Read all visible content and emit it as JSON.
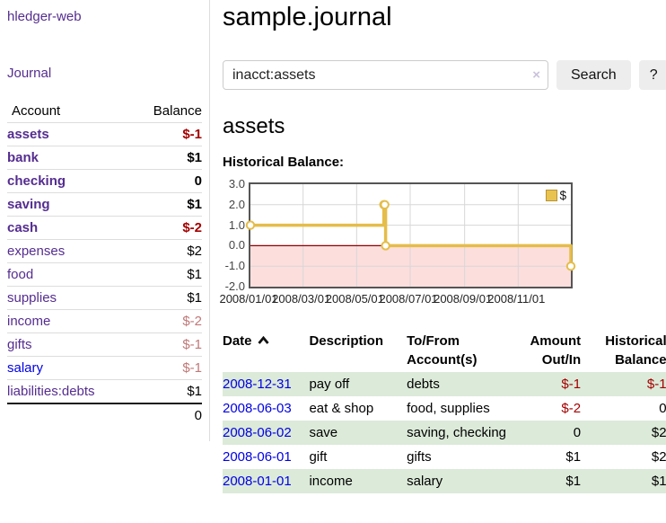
{
  "app": {
    "brand": "hledger-web"
  },
  "sidebar": {
    "journal_link": "Journal",
    "accounts": {
      "headers": {
        "account": "Account",
        "balance": "Balance"
      },
      "rows": [
        {
          "name": "assets",
          "balance": "$-1"
        },
        {
          "name": "bank",
          "balance": "$1"
        },
        {
          "name": "checking",
          "balance": "0"
        },
        {
          "name": "saving",
          "balance": "$1"
        },
        {
          "name": "cash",
          "balance": "$-2"
        },
        {
          "name": "expenses",
          "balance": "$2"
        },
        {
          "name": "food",
          "balance": "$1"
        },
        {
          "name": "supplies",
          "balance": "$1"
        },
        {
          "name": "income",
          "balance": "$-2"
        },
        {
          "name": "gifts",
          "balance": "$-1"
        },
        {
          "name": "salary",
          "balance": "$-1"
        },
        {
          "name": "liabilities:debts",
          "balance": "$1"
        }
      ],
      "total": "0"
    }
  },
  "main": {
    "title": "sample.journal",
    "search": {
      "value": "inacct:assets",
      "clear_icon": "×",
      "search_button": "Search",
      "help_button": "?"
    },
    "account_heading": "assets",
    "chart_label": "Historical Balance:"
  },
  "chart_data": {
    "type": "line",
    "title": "Historical Balance",
    "grid": true,
    "legend_position": "top-right",
    "x_axis": {
      "max_day": 365,
      "tick_labels": [
        "2008/01/01",
        "2008/03/01",
        "2008/05/01",
        "2008/07/01",
        "2008/09/01",
        "2008/11/01"
      ],
      "tick_days": [
        0,
        60,
        121,
        182,
        244,
        305
      ]
    },
    "y_axis": {
      "min": -2.0,
      "max": 3.0,
      "ticks": [
        "3.0",
        "2.0",
        "1.0",
        "0.0",
        "-1.0",
        "-2.0"
      ]
    },
    "series": [
      {
        "name": "$",
        "color": "#e5bd49",
        "step": true,
        "points": [
          {
            "date": "2008-01-01",
            "day": 0,
            "value": 1
          },
          {
            "date": "2008-06-01",
            "day": 152,
            "value": 2
          },
          {
            "date": "2008-06-02",
            "day": 153,
            "value": 2
          },
          {
            "date": "2008-06-03",
            "day": 154,
            "value": 0
          },
          {
            "date": "2008-12-31",
            "day": 365,
            "value": -1
          }
        ]
      }
    ],
    "colors": {
      "negative_region": "#fcdedd",
      "zero_line": "#900000",
      "grid": "#d7d7d7",
      "marker_fill": "#ffffff"
    }
  },
  "register": {
    "columns": {
      "date": "Date",
      "description": "Description",
      "accounts": "To/From Account(s)",
      "amount": "Amount Out/In",
      "balance": "Historical Balance"
    },
    "rows": [
      {
        "date": "2008-12-31",
        "description": "pay off",
        "accounts": "debts",
        "amount": "$-1",
        "balance": "$-1"
      },
      {
        "date": "2008-06-03",
        "description": "eat & shop",
        "accounts": "food, supplies",
        "amount": "$-2",
        "balance": "0"
      },
      {
        "date": "2008-06-02",
        "description": "save",
        "accounts": "saving, checking",
        "amount": "0",
        "balance": "$2"
      },
      {
        "date": "2008-06-01",
        "description": "gift",
        "accounts": "gifts",
        "amount": "$1",
        "balance": "$2"
      },
      {
        "date": "2008-01-01",
        "description": "income",
        "accounts": "salary",
        "amount": "$1",
        "balance": "$1"
      }
    ]
  }
}
